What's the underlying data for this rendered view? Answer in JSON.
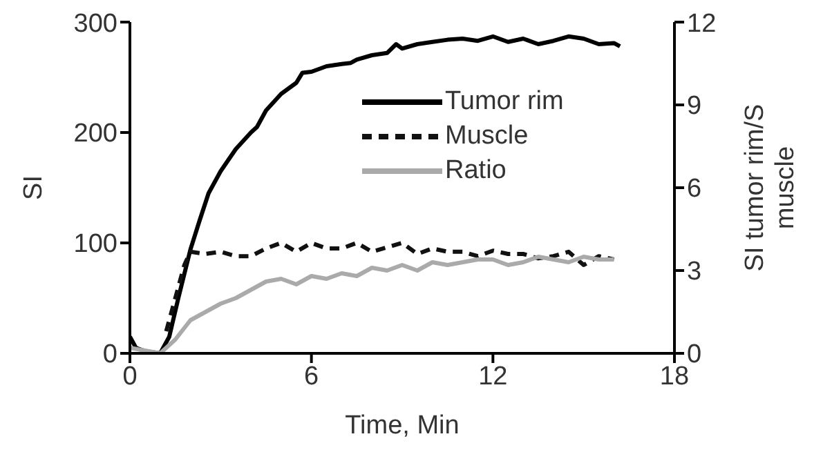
{
  "chart_data": {
    "type": "line",
    "xlabel": "Time, Min",
    "ylabel": "SI",
    "y2label": "SI tumor rim/S muscle",
    "xlim": [
      0,
      18
    ],
    "xticks": [
      0,
      6,
      12,
      18
    ],
    "ylim": [
      0,
      300
    ],
    "yticks": [
      0,
      100,
      200,
      300
    ],
    "y2lim": [
      0,
      12
    ],
    "y2ticks": [
      0,
      3,
      6,
      9,
      12
    ],
    "grid": false,
    "legend": "top right",
    "marker": "none",
    "series": [
      {
        "name": "Tumor rim",
        "color": "#000000",
        "line_style": "solid",
        "x": [
          0,
          0.2,
          0.5,
          1,
          1.3,
          1.6,
          2,
          2.3,
          2.6,
          3,
          3.5,
          4,
          4.2,
          4.5,
          5,
          5.5,
          5.7,
          6,
          6.5,
          7,
          7.3,
          7.5,
          8,
          8.5,
          8.8,
          9,
          9.5,
          10,
          10.5,
          11,
          11.5,
          12,
          12.5,
          13,
          13.5,
          14,
          14.5,
          15,
          15.5,
          16,
          16.2
        ],
        "values": [
          15,
          5,
          2,
          0,
          15,
          50,
          94,
          120,
          145,
          165,
          185,
          200,
          205,
          220,
          235,
          245,
          254,
          255,
          260,
          262,
          263,
          266,
          270,
          272,
          280,
          276,
          280,
          282,
          284,
          285,
          283,
          287,
          282,
          285,
          280,
          283,
          287,
          285,
          280,
          281,
          278
        ]
      },
      {
        "name": "Muscle",
        "color": "#111111",
        "line_style": "dashed",
        "x": [
          1.2,
          1.5,
          1.8,
          2,
          2.5,
          3,
          3.5,
          4,
          4.5,
          5,
          5.5,
          6,
          6.5,
          7,
          7.5,
          8,
          8.5,
          9,
          9.5,
          10,
          10.5,
          11,
          11.5,
          12,
          12.5,
          13,
          13.5,
          14,
          14.5,
          15,
          15.5,
          16
        ],
        "values": [
          20,
          50,
          80,
          92,
          90,
          92,
          88,
          88,
          95,
          100,
          92,
          100,
          95,
          95,
          100,
          92,
          96,
          100,
          90,
          95,
          92,
          92,
          88,
          93,
          90,
          90,
          86,
          88,
          92,
          80,
          88,
          85
        ]
      },
      {
        "name": "Ratio",
        "color": "#aaaaaa",
        "line_style": "solid",
        "axis": "y2",
        "x": [
          0,
          0.5,
          1,
          1.5,
          2,
          2.5,
          3,
          3.5,
          4,
          4.5,
          5,
          5.5,
          6,
          6.5,
          7,
          7.5,
          8,
          8.5,
          9,
          9.5,
          10,
          10.5,
          11,
          11.5,
          12,
          12.5,
          13,
          13.5,
          14,
          14.5,
          15,
          15.5,
          16
        ],
        "values": [
          0.2,
          0.1,
          0,
          0.5,
          1.2,
          1.5,
          1.8,
          2,
          2.3,
          2.6,
          2.7,
          2.5,
          2.8,
          2.7,
          2.9,
          2.8,
          3.1,
          3,
          3.2,
          3,
          3.3,
          3.2,
          3.3,
          3.4,
          3.4,
          3.2,
          3.3,
          3.5,
          3.4,
          3.3,
          3.5,
          3.4,
          3.4
        ]
      }
    ]
  }
}
